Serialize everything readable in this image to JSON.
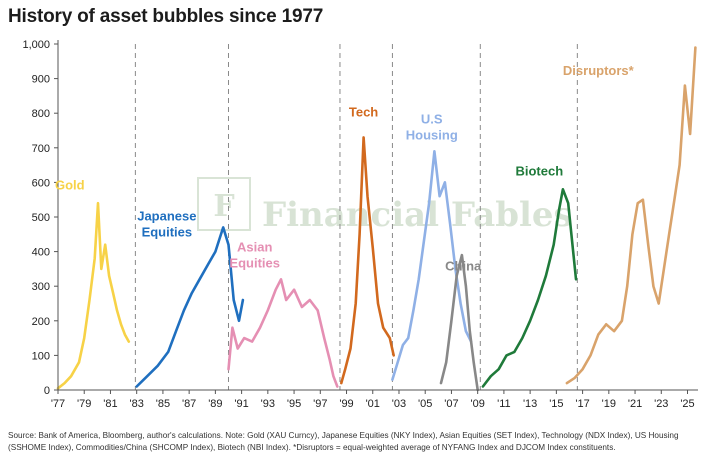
{
  "chart_data": {
    "type": "line",
    "title": "History of asset bubbles since 1977",
    "ylim": [
      0,
      1000
    ],
    "xlim": [
      1977,
      2025.8
    ],
    "yticks": [
      0,
      100,
      200,
      300,
      400,
      500,
      600,
      700,
      800,
      900,
      1000
    ],
    "ytick_labels": [
      "0",
      "100",
      "200",
      "300",
      "400",
      "500",
      "600",
      "700",
      "800",
      "900",
      "1,000"
    ],
    "xticks": [
      1977,
      1979,
      1981,
      1983,
      1985,
      1987,
      1989,
      1991,
      1993,
      1995,
      1997,
      1999,
      2001,
      2003,
      2005,
      2007,
      2009,
      2011,
      2013,
      2015,
      2017,
      2019,
      2021,
      2023,
      2025
    ],
    "xtick_labels": [
      "'77",
      "'79",
      "'81",
      "'83",
      "'85",
      "'87",
      "'89",
      "'91",
      "'93",
      "'95",
      "'97",
      "'99",
      "'01",
      "'03",
      "'05",
      "'07",
      "'09",
      "'11",
      "'13",
      "'15",
      "'17",
      "'19",
      "'21",
      "'23",
      "'25"
    ],
    "dividers": [
      1982.9,
      1990.0,
      1998.5,
      2002.5,
      2009.2,
      2016.6
    ],
    "grid": false,
    "series": [
      {
        "name": "Gold",
        "color": "#f7d247",
        "x": [
          1977.0,
          1977.5,
          1978.0,
          1978.6,
          1979.0,
          1979.4,
          1979.8,
          1980.05,
          1980.3,
          1980.6,
          1980.9,
          1981.2,
          1981.5,
          1981.8,
          1982.1,
          1982.4
        ],
        "y": [
          5,
          20,
          40,
          80,
          150,
          260,
          380,
          540,
          350,
          420,
          330,
          280,
          230,
          190,
          160,
          140
        ],
        "label_x": 1977.9,
        "label_y": 580
      },
      {
        "name": "Japanese Equities",
        "color": "#1f6fbf",
        "x": [
          1983.0,
          1983.8,
          1984.6,
          1985.4,
          1986.0,
          1986.6,
          1987.2,
          1987.8,
          1988.4,
          1989.0,
          1989.6,
          1990.0,
          1990.4,
          1990.8,
          1991.1
        ],
        "y": [
          10,
          40,
          70,
          110,
          170,
          230,
          280,
          320,
          360,
          400,
          470,
          420,
          260,
          200,
          260
        ],
        "label_x": 1985.3,
        "label_y": 490
      },
      {
        "name": "Asian Equities",
        "color": "#e58fb3",
        "x": [
          1990.0,
          1990.3,
          1990.7,
          1991.2,
          1991.8,
          1992.4,
          1993.0,
          1993.6,
          1994.0,
          1994.4,
          1995.0,
          1995.6,
          1996.2,
          1996.8,
          1997.3,
          1997.7,
          1998.0,
          1998.3
        ],
        "y": [
          60,
          180,
          120,
          150,
          140,
          180,
          230,
          290,
          320,
          260,
          290,
          240,
          260,
          230,
          150,
          90,
          40,
          10
        ],
        "label_x": 1992.0,
        "label_y": 400
      },
      {
        "name": "Tech",
        "color": "#d2691e",
        "x": [
          1998.6,
          1998.9,
          1999.3,
          1999.7,
          2000.0,
          2000.3,
          2000.6,
          2001.0,
          2001.4,
          2001.8,
          2002.3,
          2002.6
        ],
        "y": [
          20,
          60,
          120,
          250,
          450,
          730,
          560,
          410,
          250,
          180,
          150,
          100
        ],
        "label_x": 2000.3,
        "label_y": 790
      },
      {
        "name": "U.S Housing",
        "color": "#8fb0e6",
        "x": [
          2002.5,
          2002.9,
          2003.3,
          2003.7,
          2004.1,
          2004.5,
          2004.9,
          2005.3,
          2005.7,
          2006.1,
          2006.5,
          2006.9,
          2007.3,
          2007.7,
          2008.1,
          2008.5
        ],
        "y": [
          30,
          80,
          130,
          150,
          230,
          320,
          430,
          540,
          690,
          560,
          600,
          480,
          350,
          250,
          170,
          140
        ],
        "label_x": 2005.5,
        "label_y": 770
      },
      {
        "name": "China",
        "color": "#888888",
        "x": [
          2006.2,
          2006.6,
          2007.0,
          2007.4,
          2007.8,
          2008.1,
          2008.4,
          2008.7,
          2009.0
        ],
        "y": [
          20,
          80,
          200,
          330,
          390,
          300,
          170,
          80,
          0
        ],
        "label_x": 2007.9,
        "label_y": 345
      },
      {
        "name": "Biotech",
        "color": "#1f7a3a",
        "x": [
          2009.4,
          2010.0,
          2010.6,
          2011.2,
          2011.8,
          2012.4,
          2013.0,
          2013.6,
          2014.2,
          2014.8,
          2015.2,
          2015.5,
          2015.9,
          2016.2,
          2016.5
        ],
        "y": [
          10,
          40,
          60,
          100,
          110,
          150,
          200,
          260,
          330,
          420,
          520,
          580,
          540,
          430,
          320
        ],
        "label_x": 2013.7,
        "label_y": 620
      },
      {
        "name": "Disruptors*",
        "color": "#d9a36b",
        "x": [
          2015.8,
          2016.4,
          2017.0,
          2017.6,
          2018.2,
          2018.8,
          2019.4,
          2020.0,
          2020.4,
          2020.8,
          2021.2,
          2021.6,
          2022.0,
          2022.4,
          2022.8,
          2023.2,
          2023.6,
          2024.0,
          2024.4,
          2024.8,
          2025.2,
          2025.6
        ],
        "y": [
          20,
          35,
          60,
          100,
          160,
          190,
          170,
          200,
          300,
          450,
          540,
          550,
          420,
          300,
          250,
          350,
          450,
          550,
          650,
          880,
          740,
          990
        ],
        "label_x": 2018.2,
        "label_y": 910
      }
    ]
  },
  "watermark": {
    "text": "Financial Fables"
  },
  "source_note": "Source: Bank of America, Bloomberg, author's calculations. Note: Gold (XAU Curncy), Japanese Equities (NKY Index), Asian Equities (SET Index), Technology (NDX Index), US Housing (SSHOME Index), Commodities/China (SHCOMP Index), Biotech (NBI Index). *Disruptors = equal-weighted average of NYFANG Index and DJCOM Index constituents."
}
